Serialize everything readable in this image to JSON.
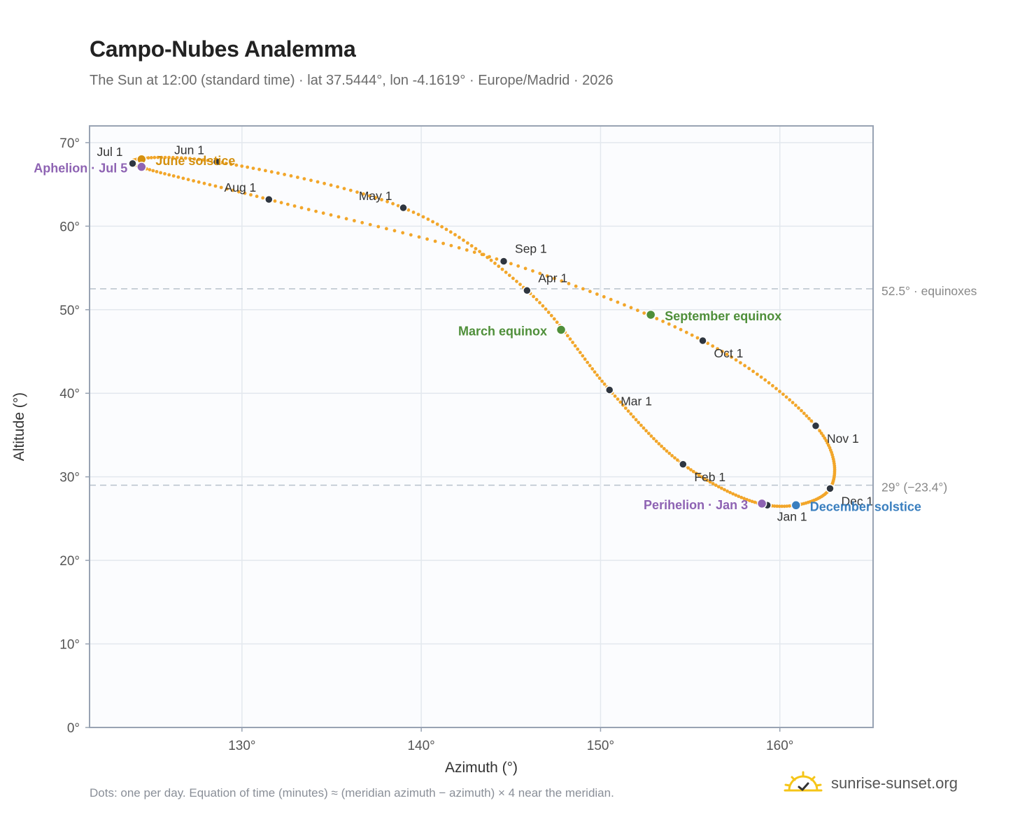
{
  "header": {
    "title": "Campo-Nubes Analemma",
    "subtitle": "The Sun at 12:00 (standard time) · lat 37.5444°, lon -4.1619° · Europe/Madrid · 2026"
  },
  "footer": {
    "note": "Dots: one per day. Equation of time (minutes) ≈ (meridian azimuth − azimuth) × 4 near the meridian.",
    "brand": "sunrise-sunset.org"
  },
  "colors": {
    "analemma": "#f2a62a",
    "month_marker": "#2f3640",
    "equinox": "#4f8f3a",
    "june_solstice": "#d4900f",
    "december_solstice": "#3a7fbf",
    "apsis": "#8e63b3",
    "grid": "#e3e8ee",
    "reference_line": "#b8c2cc",
    "plot_background": "#fbfcfe"
  },
  "chart_data": {
    "type": "scatter",
    "xlabel": "Azimuth (°)",
    "ylabel": "Altitude (°)",
    "xlim": [
      121.5,
      165.2
    ],
    "ylim": [
      0,
      72
    ],
    "x_ticks": [
      130,
      140,
      150,
      160
    ],
    "x_tick_labels": [
      "130°",
      "140°",
      "150°",
      "160°"
    ],
    "y_ticks": [
      0,
      10,
      20,
      30,
      40,
      50,
      60,
      70
    ],
    "y_tick_labels": [
      "0°",
      "10°",
      "20°",
      "30°",
      "40°",
      "50°",
      "60°",
      "70°"
    ],
    "grid": true,
    "series_note": "daily sun positions, one dot per day",
    "month_markers": [
      {
        "label": "Jan 1",
        "az": 159.3,
        "alt": 26.6
      },
      {
        "label": "Feb 1",
        "az": 154.6,
        "alt": 31.5
      },
      {
        "label": "Mar 1",
        "az": 150.5,
        "alt": 40.4
      },
      {
        "label": "Apr 1",
        "az": 145.9,
        "alt": 52.3
      },
      {
        "label": "May 1",
        "az": 139.0,
        "alt": 62.2
      },
      {
        "label": "Jun 1",
        "az": 128.6,
        "alt": 67.7
      },
      {
        "label": "Jul 1",
        "az": 123.9,
        "alt": 67.5
      },
      {
        "label": "Aug 1",
        "az": 131.5,
        "alt": 63.2
      },
      {
        "label": "Sep 1",
        "az": 144.6,
        "alt": 55.8
      },
      {
        "label": "Oct 1",
        "az": 155.7,
        "alt": 46.3
      },
      {
        "label": "Nov 1",
        "az": 162.0,
        "alt": 36.1
      },
      {
        "label": "Dec 1",
        "az": 162.8,
        "alt": 28.6
      }
    ],
    "events": [
      {
        "label": "March equinox",
        "az": 147.8,
        "alt": 47.6,
        "color_key": "equinox"
      },
      {
        "label": "September equinox",
        "az": 152.8,
        "alt": 49.4,
        "color_key": "equinox"
      },
      {
        "label": "June solstice",
        "az": 124.4,
        "alt": 68.0,
        "color_key": "june_solstice"
      },
      {
        "label": "December solstice",
        "az": 160.9,
        "alt": 26.6,
        "color_key": "december_solstice"
      },
      {
        "label": "Perihelion · Jan 3",
        "az": 159.0,
        "alt": 26.8,
        "color_key": "apsis"
      },
      {
        "label": "Aphelion · Jul 5",
        "az": 124.4,
        "alt": 67.1,
        "color_key": "apsis"
      }
    ],
    "reference_lines": [
      {
        "label": "52.5° · equinoxes",
        "alt": 52.5
      },
      {
        "label": "29° (−23.4°)",
        "alt": 29.0
      }
    ]
  }
}
